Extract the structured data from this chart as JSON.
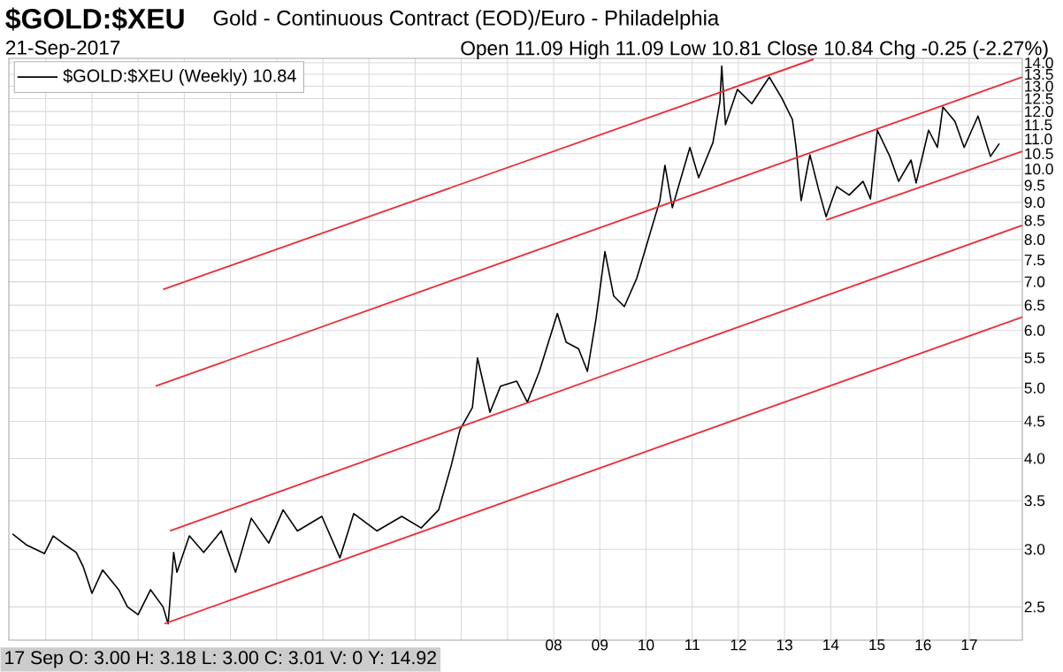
{
  "chart_data": {
    "type": "line",
    "title": "$GOLD:$XEU",
    "subtitle": "Gold - Continuous Contract (EOD)/Euro - Philadelphia",
    "annotations": [
      "21-Sep-2017",
      "Open 11.09 High 11.09 Low 10.81 Close 10.84 Chg -0.25 (-2.27%)",
      "17 Sep O: 3.00 H: 3.18 L: 3.00 C: 3.01 V: 0 Y: 14.92"
    ],
    "log": "y",
    "grid": true,
    "legend": "top left",
    "marker": "none",
    "xlim": [
      1996.2,
      2018.15
    ],
    "ylim": [
      2.25,
      14.2
    ],
    "xticks": [
      {
        "value": 1997,
        "label": null
      },
      {
        "value": 1998,
        "label": null
      },
      {
        "value": 1999,
        "label": null
      },
      {
        "value": 2000,
        "label": null
      },
      {
        "value": 2001,
        "label": null
      },
      {
        "value": 2002,
        "label": null
      },
      {
        "value": 2003,
        "label": null
      },
      {
        "value": 2004,
        "label": null
      },
      {
        "value": 2005,
        "label": null
      },
      {
        "value": 2006,
        "label": null
      },
      {
        "value": 2007,
        "label": null
      },
      {
        "value": 2008,
        "label": "08"
      },
      {
        "value": 2009,
        "label": "09"
      },
      {
        "value": 2010,
        "label": "10"
      },
      {
        "value": 2011,
        "label": "11"
      },
      {
        "value": 2012,
        "label": "12"
      },
      {
        "value": 2013,
        "label": "13"
      },
      {
        "value": 2014,
        "label": "14"
      },
      {
        "value": 2015,
        "label": "15"
      },
      {
        "value": 2016,
        "label": "16"
      },
      {
        "value": 2017,
        "label": "17"
      }
    ],
    "yticks": [
      2.5,
      {
        "value": 3,
        "label": "3.0"
      },
      3.5,
      {
        "value": 4,
        "label": "4.0"
      },
      4.5,
      {
        "value": 5,
        "label": "5.0"
      },
      5.5,
      {
        "value": 6,
        "label": "6.0"
      },
      6.5,
      {
        "value": 7,
        "label": "7.0"
      },
      7.5,
      {
        "value": 8,
        "label": "8.0"
      },
      8.5,
      {
        "value": 9,
        "label": "9.0"
      },
      9.5,
      {
        "value": 10,
        "label": "10.0"
      },
      10.5,
      {
        "value": 11,
        "label": "11.0"
      },
      11.5,
      {
        "value": 12,
        "label": "12.0"
      },
      12.5,
      {
        "value": 13,
        "label": "13.0"
      },
      13.5,
      {
        "value": 14,
        "label": "14.0"
      }
    ],
    "series": [
      {
        "name": "$GOLD:$XEU (Weekly) 10.84",
        "color": "#000000",
        "x": [
          1996.28,
          1996.59,
          1996.97,
          1997.16,
          1997.43,
          1997.66,
          1997.81,
          1998.0,
          1998.23,
          1998.58,
          1998.77,
          1999.0,
          1999.27,
          1999.54,
          1999.65,
          1999.77,
          1999.84,
          2000.11,
          2000.42,
          2000.8,
          2001.11,
          2001.45,
          2001.83,
          2002.14,
          2002.45,
          2002.98,
          2003.37,
          2003.67,
          2004.17,
          2004.71,
          2005.13,
          2005.51,
          2005.78,
          2005.97,
          2006.24,
          2006.35,
          2006.62,
          2006.85,
          2007.2,
          2007.43,
          2007.69,
          2008.08,
          2008.27,
          2008.54,
          2008.73,
          2008.92,
          2009.11,
          2009.3,
          2009.53,
          2009.8,
          2010.07,
          2010.3,
          2010.41,
          2010.57,
          2010.95,
          2011.14,
          2011.45,
          2011.6,
          2011.64,
          2011.72,
          2011.98,
          2012.29,
          2012.67,
          2012.94,
          2013.17,
          2013.25,
          2013.36,
          2013.55,
          2013.74,
          2013.9,
          2014.13,
          2014.4,
          2014.7,
          2014.86,
          2015.01,
          2015.28,
          2015.47,
          2015.74,
          2015.85,
          2016.12,
          2016.31,
          2016.43,
          2016.69,
          2016.89,
          2017.19,
          2017.46,
          2017.65
        ],
        "values": [
          3.15,
          3.04,
          2.96,
          3.13,
          3.04,
          2.97,
          2.84,
          2.61,
          2.81,
          2.64,
          2.5,
          2.44,
          2.64,
          2.5,
          2.37,
          2.97,
          2.79,
          3.13,
          2.97,
          3.18,
          2.79,
          3.31,
          3.06,
          3.4,
          3.18,
          3.33,
          2.92,
          3.36,
          3.18,
          3.33,
          3.21,
          3.4,
          3.91,
          4.38,
          4.7,
          5.5,
          4.63,
          5.03,
          5.11,
          4.78,
          5.27,
          6.33,
          5.78,
          5.66,
          5.27,
          6.24,
          7.7,
          6.69,
          6.47,
          7.08,
          8.09,
          9.05,
          10.12,
          8.85,
          10.71,
          9.73,
          10.88,
          12.38,
          13.85,
          11.51,
          12.87,
          12.3,
          13.38,
          12.52,
          11.7,
          10.71,
          9.05,
          10.46,
          9.36,
          8.6,
          9.46,
          9.21,
          9.62,
          9.1,
          11.31,
          10.41,
          9.62,
          10.29,
          9.57,
          11.31,
          10.71,
          12.17,
          11.63,
          10.71,
          11.83,
          10.41,
          10.84
        ]
      },
      {
        "type": "line",
        "color": "#e8303a",
        "x": [
          1999.54,
          2013.63
        ],
        "values": [
          6.83,
          14.16
        ]
      },
      {
        "type": "line",
        "color": "#e8303a",
        "x": [
          1999.38,
          2018.15
        ],
        "values": [
          5.03,
          13.38
        ]
      },
      {
        "type": "line",
        "color": "#e8303a",
        "x": [
          1999.69,
          2018.15
        ],
        "values": [
          3.18,
          8.37
        ]
      },
      {
        "type": "line",
        "color": "#e8303a",
        "x": [
          1999.57,
          2018.15
        ],
        "values": [
          2.37,
          6.26
        ]
      },
      {
        "type": "line",
        "color": "#e8303a",
        "x": [
          2013.9,
          2018.15
        ],
        "values": [
          8.51,
          10.58
        ]
      }
    ]
  }
}
